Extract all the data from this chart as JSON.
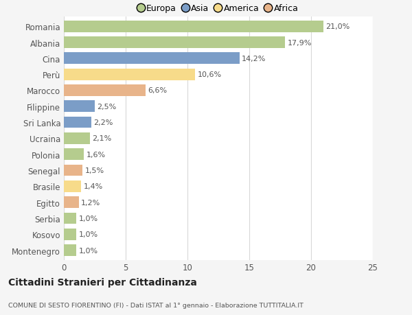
{
  "categories": [
    "Romania",
    "Albania",
    "Cina",
    "Perù",
    "Marocco",
    "Filippine",
    "Sri Lanka",
    "Ucraina",
    "Polonia",
    "Senegal",
    "Brasile",
    "Egitto",
    "Serbia",
    "Kosovo",
    "Montenegro"
  ],
  "values": [
    21.0,
    17.9,
    14.2,
    10.6,
    6.6,
    2.5,
    2.2,
    2.1,
    1.6,
    1.5,
    1.4,
    1.2,
    1.0,
    1.0,
    1.0
  ],
  "labels": [
    "21,0%",
    "17,9%",
    "14,2%",
    "10,6%",
    "6,6%",
    "2,5%",
    "2,2%",
    "2,1%",
    "1,6%",
    "1,5%",
    "1,4%",
    "1,2%",
    "1,0%",
    "1,0%",
    "1,0%"
  ],
  "colors": [
    "#b5cc8e",
    "#b5cc8e",
    "#7b9dc7",
    "#f7db8a",
    "#e8b48a",
    "#7b9dc7",
    "#7b9dc7",
    "#b5cc8e",
    "#b5cc8e",
    "#e8b48a",
    "#f7db8a",
    "#e8b48a",
    "#b5cc8e",
    "#b5cc8e",
    "#b5cc8e"
  ],
  "legend_labels": [
    "Europa",
    "Asia",
    "America",
    "Africa"
  ],
  "legend_colors": [
    "#b5cc8e",
    "#7b9dc7",
    "#f7db8a",
    "#e8b48a"
  ],
  "title": "Cittadini Stranieri per Cittadinanza",
  "subtitle": "COMUNE DI SESTO FIORENTINO (FI) - Dati ISTAT al 1° gennaio - Elaborazione TUTTITALIA.IT",
  "xlim": [
    0,
    25
  ],
  "xticks": [
    0,
    5,
    10,
    15,
    20,
    25
  ],
  "background_color": "#f5f5f5",
  "bar_background": "#ffffff",
  "grid_color": "#d8d8d8"
}
